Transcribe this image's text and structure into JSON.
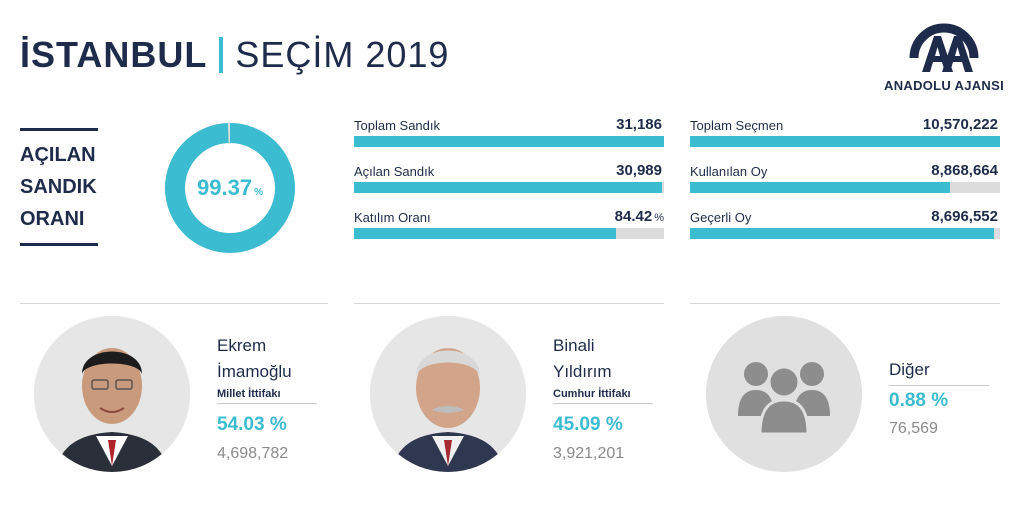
{
  "header": {
    "city": "İSTANBUL",
    "subtitle": "SEÇİM 2019"
  },
  "logo": {
    "text": "ANADOLU AJANSI",
    "color": "#1e2b4a"
  },
  "opened_ratio": {
    "label_lines": [
      "AÇILAN",
      "SANDIK",
      "ORANI"
    ],
    "value": "99.37",
    "unit": "%",
    "fraction": 0.9937
  },
  "stats_left": [
    {
      "label": "Toplam Sandık",
      "value": "31,186",
      "unit": "",
      "fill": 1.0
    },
    {
      "label": "Açılan Sandık",
      "value": "30,989",
      "unit": "",
      "fill": 0.9937
    },
    {
      "label": "Katılım Oranı",
      "value": "84.42",
      "unit": "%",
      "fill": 0.8442
    }
  ],
  "stats_right": [
    {
      "label": "Toplam Seçmen",
      "value": "10,570,222",
      "unit": "",
      "fill": 1.0
    },
    {
      "label": "Kullanılan Oy",
      "value": "8,868,664",
      "unit": "",
      "fill": 0.839
    },
    {
      "label": "Geçerli Oy",
      "value": "8,696,552",
      "unit": "",
      "fill": 0.98
    }
  ],
  "candidates": [
    {
      "name_line1": "Ekrem",
      "name_line2": "İmamoğlu",
      "alliance": "Millet İttifakı",
      "percent": "54.03 %",
      "votes": "4,698,782",
      "image": "portrait-ekrem-imamoglu"
    },
    {
      "name_line1": "Binali",
      "name_line2": "Yıldırım",
      "alliance": "Cumhur İttifakı",
      "percent": "45.09 %",
      "votes": "3,921,201",
      "image": "portrait-binali-yildirim"
    },
    {
      "name_line1": "Diğer",
      "percent": "0.88 %",
      "votes": "76,569",
      "image": "group-people-icon"
    }
  ],
  "colors": {
    "accent": "#3bbcd0",
    "navy": "#1e2b4a",
    "bar_bg": "#dcdcdc",
    "muted": "#8a8a8a"
  }
}
